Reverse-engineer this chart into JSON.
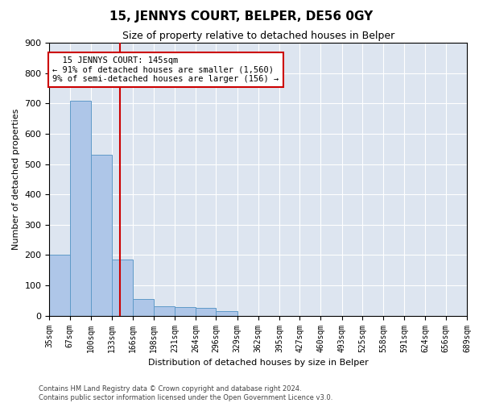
{
  "title": "15, JENNYS COURT, BELPER, DE56 0GY",
  "subtitle": "Size of property relative to detached houses in Belper",
  "xlabel": "Distribution of detached houses by size in Belper",
  "ylabel": "Number of detached properties",
  "footer_line1": "Contains HM Land Registry data © Crown copyright and database right 2024.",
  "footer_line2": "Contains public sector information licensed under the Open Government Licence v3.0.",
  "annotation_line1": "  15 JENNYS COURT: 145sqm",
  "annotation_line2": "← 91% of detached houses are smaller (1,560)",
  "annotation_line3": "9% of semi-detached houses are larger (156) →",
  "property_size": 145,
  "bar_color": "#aec6e8",
  "bar_edge_color": "#5f9ac8",
  "annotation_box_color": "#ffffff",
  "annotation_box_edge_color": "#cc0000",
  "vline_color": "#cc0000",
  "background_color": "#dde5f0",
  "grid_color": "#ffffff",
  "bins": [
    35,
    67,
    100,
    133,
    166,
    198,
    231,
    264,
    296,
    329,
    362,
    395,
    427,
    460,
    493,
    525,
    558,
    591,
    624,
    656,
    689
  ],
  "counts": [
    200,
    710,
    530,
    185,
    55,
    30,
    28,
    25,
    14,
    0,
    0,
    0,
    0,
    0,
    0,
    0,
    0,
    0,
    0,
    0
  ],
  "ylim": [
    0,
    900
  ],
  "yticks": [
    0,
    100,
    200,
    300,
    400,
    500,
    600,
    700,
    800,
    900
  ],
  "title_fontsize": 11,
  "subtitle_fontsize": 9,
  "ylabel_fontsize": 8,
  "xlabel_fontsize": 8,
  "footer_fontsize": 6,
  "tick_fontsize": 7
}
